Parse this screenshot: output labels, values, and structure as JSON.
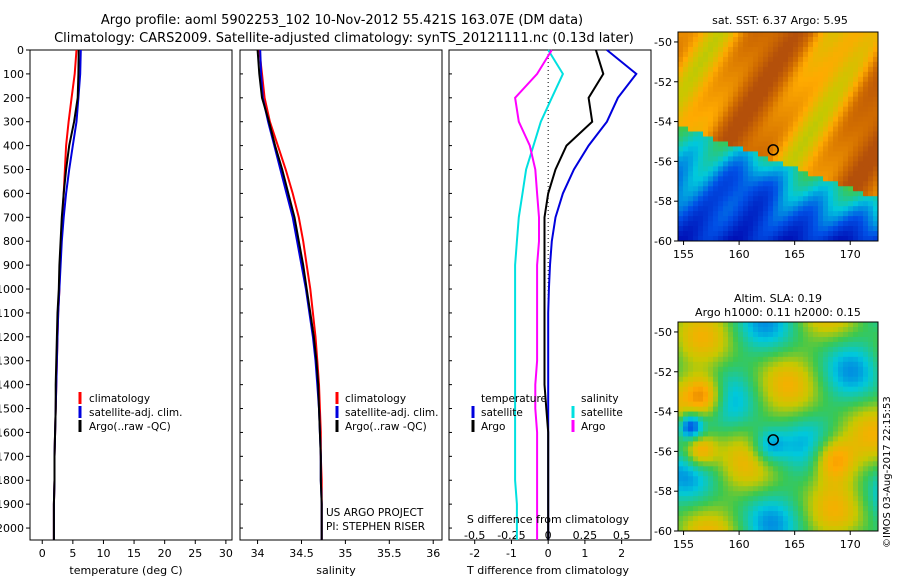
{
  "header": {
    "title_line1": "Argo profile: aoml 5902253_102 10-Nov-2012 55.421S 163.07E (DM data)",
    "title_line2": "Climatology: CARS2009. Satellite-adjusted climatology: synTS_20121111.nc (0.13d later)"
  },
  "colors": {
    "climatology": "#ff0000",
    "satellite": "#0000dd",
    "argo": "#000000",
    "temperature_satellite": "#0000dd",
    "temperature_argo": "#000000",
    "salinity_satellite": "#00e0e0",
    "salinity_argo": "#ff00ff"
  },
  "depth_axis": {
    "ticks": [
      0,
      100,
      200,
      300,
      400,
      500,
      600,
      700,
      800,
      900,
      1000,
      1100,
      1200,
      1300,
      1400,
      1500,
      1600,
      1700,
      1800,
      1900,
      2000
    ],
    "range": [
      0,
      2050
    ],
    "inverted": true
  },
  "panels": {
    "temperature": {
      "xlabel": "temperature (deg C)",
      "xticks": [
        0,
        5,
        10,
        15,
        20,
        25,
        30
      ],
      "xlim": [
        -2,
        31
      ],
      "legend": [
        "climatology",
        "satellite-adj. clim.",
        "Argo(..raw -QC)"
      ]
    },
    "salinity": {
      "xlabel": "salinity",
      "xticks": [
        "34",
        "34.5",
        "35",
        "35.5",
        "36"
      ],
      "xlim": [
        33.8,
        36.1
      ],
      "legend": [
        "climatology",
        "satellite-adj. clim.",
        "Argo(..raw -QC)"
      ],
      "note_line1": "US ARGO PROJECT",
      "note_line2": "PI: STEPHEN RISER"
    },
    "difference": {
      "xlabel_top": "S difference from climatology",
      "xlabel_bottom": "T difference from climatology",
      "s_ticks": [
        "-0.5",
        "-0.25",
        "0",
        "0.25",
        "0.5"
      ],
      "t_ticks": [
        "-2",
        "-1",
        "0",
        "1",
        "2"
      ],
      "legend_temp_title": "temperature",
      "legend_sal_title": "salinity",
      "legend_temp": [
        "satellite",
        "Argo"
      ],
      "legend_sal": [
        "satellite",
        "Argo"
      ]
    }
  },
  "maps": {
    "sst": {
      "title": "sat. SST: 6.37 Argo: 5.95",
      "xticks": [
        "155",
        "160",
        "165",
        "170"
      ],
      "yticks": [
        "-50",
        "-52",
        "-54",
        "-56",
        "-58",
        "-60"
      ]
    },
    "sla": {
      "title_line1": "Altim. SLA: 0.19",
      "title_line2": "Argo h1000: 0.11 h2000: 0.15",
      "xticks": [
        "155",
        "160",
        "165",
        "170"
      ],
      "yticks": [
        "-50",
        "-52",
        "-54",
        "-56",
        "-58",
        "-60"
      ]
    },
    "float_position": {
      "lon": 163.07,
      "lat": -55.421
    },
    "lon_range": [
      154.5,
      172.5
    ],
    "lat_range": [
      -60.0,
      -49.5
    ]
  },
  "footer": {
    "credit": "©IMOS 03-Aug-2017 22:15:53"
  },
  "chart_data": [
    {
      "type": "line",
      "title": "",
      "xlabel": "temperature (deg C)",
      "ylabel": "",
      "xlim": [
        -2,
        31
      ],
      "ylim": [
        2050,
        0
      ],
      "series": [
        {
          "name": "climatology",
          "x": [
            5.6,
            5.3,
            4.8,
            4.3,
            3.9,
            3.7,
            3.5,
            3.3,
            3.1,
            2.9,
            2.8,
            2.6,
            2.5,
            2.4,
            2.3,
            2.2,
            2.1,
            2.0,
            2.0,
            1.9,
            1.9
          ],
          "y": [
            0,
            100,
            200,
            300,
            400,
            500,
            600,
            700,
            800,
            900,
            1000,
            1100,
            1200,
            1300,
            1400,
            1500,
            1600,
            1700,
            1800,
            1900,
            2050
          ]
        },
        {
          "name": "satellite-adj. clim.",
          "x": [
            6.3,
            6.2,
            5.9,
            5.6,
            5.0,
            4.4,
            3.9,
            3.5,
            3.2,
            3.0,
            2.8,
            2.6,
            2.5,
            2.4,
            2.3,
            2.2,
            2.1,
            2.0,
            2.0,
            1.9,
            1.9
          ],
          "y": [
            0,
            100,
            200,
            300,
            400,
            500,
            600,
            700,
            800,
            900,
            1000,
            1100,
            1200,
            1300,
            1400,
            1500,
            1600,
            1700,
            1800,
            1900,
            2050
          ]
        },
        {
          "name": "Argo(..raw -QC)",
          "x": [
            5.95,
            5.9,
            5.8,
            5.2,
            4.4,
            3.9,
            3.5,
            3.2,
            3.0,
            2.8,
            2.7,
            2.5,
            2.4,
            2.3,
            2.2,
            2.2,
            2.1,
            2.0,
            2.0,
            1.9,
            1.9
          ],
          "y": [
            0,
            100,
            200,
            300,
            400,
            500,
            600,
            700,
            800,
            900,
            1000,
            1100,
            1200,
            1300,
            1400,
            1500,
            1600,
            1700,
            1800,
            1900,
            2050
          ]
        }
      ]
    },
    {
      "type": "line",
      "title": "",
      "xlabel": "salinity",
      "ylabel": "",
      "xlim": [
        33.8,
        36.1
      ],
      "ylim": [
        2050,
        0
      ],
      "series": [
        {
          "name": "climatology",
          "x": [
            34.02,
            34.05,
            34.08,
            34.14,
            34.23,
            34.32,
            34.4,
            34.47,
            34.52,
            34.56,
            34.6,
            34.63,
            34.66,
            34.68,
            34.7,
            34.71,
            34.72,
            34.72,
            34.73,
            34.73,
            34.73
          ],
          "y": [
            0,
            100,
            200,
            300,
            400,
            500,
            600,
            700,
            800,
            900,
            1000,
            1100,
            1200,
            1300,
            1400,
            1500,
            1600,
            1700,
            1800,
            1900,
            2050
          ]
        },
        {
          "name": "satellite-adj. clim.",
          "x": [
            34.03,
            34.04,
            34.06,
            34.12,
            34.19,
            34.26,
            34.33,
            34.4,
            34.45,
            34.5,
            34.55,
            34.59,
            34.63,
            34.66,
            34.68,
            34.7,
            34.71,
            34.72,
            34.72,
            34.73,
            34.73
          ],
          "y": [
            0,
            100,
            200,
            300,
            400,
            500,
            600,
            700,
            800,
            900,
            1000,
            1100,
            1200,
            1300,
            1400,
            1500,
            1600,
            1700,
            1800,
            1900,
            2050
          ]
        },
        {
          "name": "Argo(..raw -QC)",
          "x": [
            34.0,
            34.02,
            34.05,
            34.13,
            34.2,
            34.28,
            34.35,
            34.42,
            34.47,
            34.52,
            34.56,
            34.6,
            34.64,
            34.67,
            34.69,
            34.7,
            34.71,
            34.72,
            34.72,
            34.73,
            34.73
          ],
          "y": [
            0,
            100,
            200,
            300,
            400,
            500,
            600,
            700,
            800,
            900,
            1000,
            1100,
            1200,
            1300,
            1400,
            1500,
            1600,
            1700,
            1800,
            1900,
            2050
          ]
        }
      ]
    },
    {
      "type": "line",
      "title": "",
      "xlabel": "T difference from climatology",
      "ylabel": "",
      "xlim": [
        -2.7,
        2.8
      ],
      "ylim": [
        2050,
        0
      ],
      "series": [
        {
          "name": "temperature satellite",
          "x": [
            1.6,
            2.4,
            1.9,
            1.6,
            1.1,
            0.7,
            0.4,
            0.2,
            0.1,
            0.05,
            0.02,
            0.0,
            0.0,
            0.0,
            0.0,
            0.0,
            0.0,
            0.0,
            0.0,
            0.0,
            0.0
          ],
          "y": [
            0,
            100,
            200,
            300,
            400,
            500,
            600,
            700,
            800,
            900,
            1000,
            1100,
            1200,
            1300,
            1400,
            1500,
            1600,
            1700,
            1800,
            1900,
            2050
          ]
        },
        {
          "name": "temperature Argo",
          "x": [
            1.3,
            1.5,
            1.1,
            1.2,
            0.5,
            0.2,
            0.0,
            -0.1,
            -0.1,
            -0.1,
            -0.1,
            -0.1,
            -0.1,
            -0.1,
            -0.1,
            -0.05,
            0.0,
            0.0,
            0.0,
            0.0,
            0.0
          ],
          "y": [
            0,
            100,
            200,
            300,
            400,
            500,
            600,
            700,
            800,
            900,
            1000,
            1100,
            1200,
            1300,
            1400,
            1500,
            1600,
            1700,
            1800,
            1900,
            2050
          ]
        },
        {
          "name": "salinity satellite",
          "x": [
            0.0,
            0.4,
            0.1,
            -0.2,
            -0.4,
            -0.6,
            -0.7,
            -0.8,
            -0.85,
            -0.9,
            -0.9,
            -0.9,
            -0.9,
            -0.9,
            -0.9,
            -0.9,
            -0.9,
            -0.9,
            -0.9,
            -0.85,
            -0.85
          ],
          "y": [
            0,
            100,
            200,
            300,
            400,
            500,
            600,
            700,
            800,
            900,
            1000,
            1100,
            1200,
            1300,
            1400,
            1500,
            1600,
            1700,
            1800,
            1900,
            2050
          ]
        },
        {
          "name": "salinity Argo",
          "x": [
            0.1,
            -0.3,
            -0.9,
            -0.8,
            -0.5,
            -0.35,
            -0.3,
            -0.25,
            -0.25,
            -0.3,
            -0.3,
            -0.3,
            -0.3,
            -0.3,
            -0.35,
            -0.35,
            -0.3,
            -0.3,
            -0.3,
            -0.3,
            -0.3
          ],
          "y": [
            0,
            100,
            200,
            300,
            400,
            500,
            600,
            700,
            800,
            900,
            1000,
            1100,
            1200,
            1300,
            1400,
            1500,
            1600,
            1700,
            1800,
            1900,
            2050
          ]
        }
      ]
    }
  ]
}
